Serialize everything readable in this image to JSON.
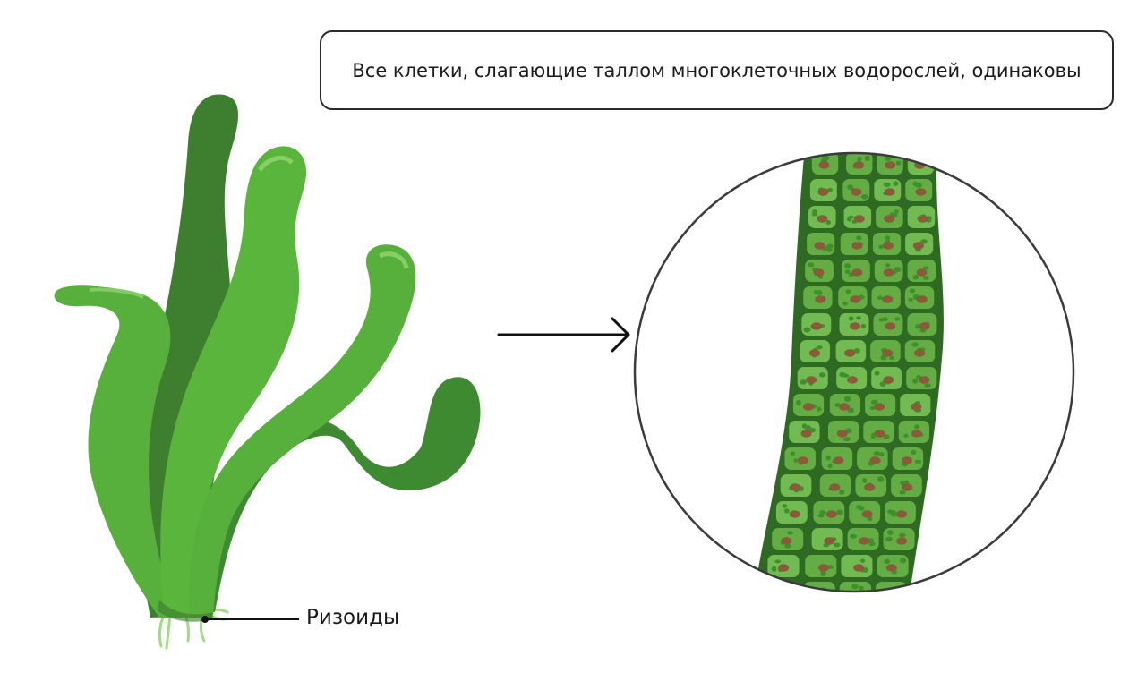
{
  "statement": "Все клетки, слагающие таллом многоклеточных водорослей, одинаковы",
  "labels": {
    "rhizoids": "Ризоиды"
  },
  "icons": {
    "arrow": "arrow-right-icon"
  },
  "colors": {
    "alga_light": "#5cb33f",
    "alga_mid": "#4a9c35",
    "alga_dark": "#3a7a2c",
    "cell_wall": "#2f6a22",
    "cell_fill": "#64ad44",
    "nucleus": "#8a5a3a",
    "outline": "#3b3b3b"
  }
}
